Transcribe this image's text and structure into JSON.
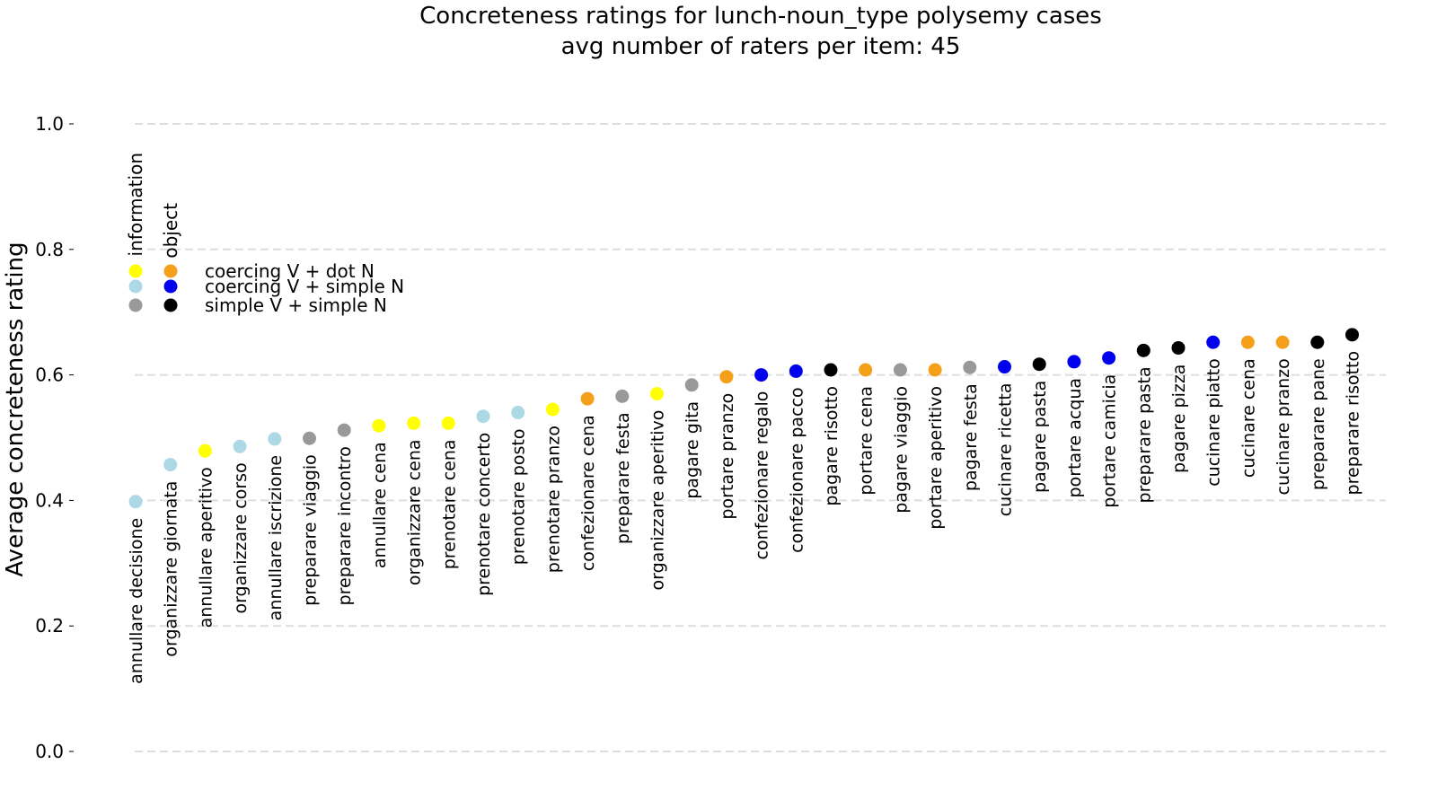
{
  "chart_data": {
    "type": "scatter",
    "title": "Concreteness ratings for lunch-noun_type polysemy cases",
    "subtitle": "avg number of raters per item: 45",
    "ylabel": "Average concreteness rating",
    "xlabel": "",
    "ylim": [
      0,
      1.0
    ],
    "yticks": [
      "0.0",
      "0.2",
      "0.4",
      "0.6",
      "0.8",
      "1.0"
    ],
    "grid": "horizontal-dashed",
    "legend": {
      "placement": "top-left",
      "column_headers": [
        "information",
        "object"
      ],
      "rows": [
        {
          "label": "coercing V + dot N",
          "colors": [
            "#ffff00",
            "#f5a01a"
          ]
        },
        {
          "label": "coercing V + simple N",
          "colors": [
            "#add8e6",
            "#0000ee"
          ]
        },
        {
          "label": "simple V + simple N",
          "colors": [
            "#999999",
            "#000000"
          ]
        }
      ]
    },
    "points": [
      {
        "label": "annullare decisione",
        "y": 0.398,
        "color": "#add8e6"
      },
      {
        "label": "organizzare giornata",
        "y": 0.457,
        "color": "#add8e6"
      },
      {
        "label": "annullare aperitivo",
        "y": 0.479,
        "color": "#ffff00"
      },
      {
        "label": "organizzare corso",
        "y": 0.486,
        "color": "#add8e6"
      },
      {
        "label": "annullare iscrizione",
        "y": 0.498,
        "color": "#add8e6"
      },
      {
        "label": "preparare viaggio",
        "y": 0.499,
        "color": "#999999"
      },
      {
        "label": "preparare incontro",
        "y": 0.512,
        "color": "#999999"
      },
      {
        "label": "annullare cena",
        "y": 0.519,
        "color": "#ffff00"
      },
      {
        "label": "organizzare cena",
        "y": 0.523,
        "color": "#ffff00"
      },
      {
        "label": "prenotare cena",
        "y": 0.523,
        "color": "#ffff00"
      },
      {
        "label": "prenotare concerto",
        "y": 0.534,
        "color": "#add8e6"
      },
      {
        "label": "prenotare posto",
        "y": 0.54,
        "color": "#add8e6"
      },
      {
        "label": "prenotare pranzo",
        "y": 0.545,
        "color": "#ffff00"
      },
      {
        "label": "confezionare cena",
        "y": 0.562,
        "color": "#f5a01a"
      },
      {
        "label": "preparare festa",
        "y": 0.566,
        "color": "#999999"
      },
      {
        "label": "organizzare aperitivo",
        "y": 0.57,
        "color": "#ffff00"
      },
      {
        "label": "pagare gita",
        "y": 0.584,
        "color": "#999999"
      },
      {
        "label": "portare pranzo",
        "y": 0.597,
        "color": "#f5a01a"
      },
      {
        "label": "confezionare regalo",
        "y": 0.6,
        "color": "#0000ee"
      },
      {
        "label": "confezionare pacco",
        "y": 0.606,
        "color": "#0000ee"
      },
      {
        "label": "pagare risotto",
        "y": 0.608,
        "color": "#000000"
      },
      {
        "label": "portare cena",
        "y": 0.608,
        "color": "#f5a01a"
      },
      {
        "label": "pagare viaggio",
        "y": 0.608,
        "color": "#999999"
      },
      {
        "label": "portare aperitivo",
        "y": 0.608,
        "color": "#f5a01a"
      },
      {
        "label": "pagare festa",
        "y": 0.612,
        "color": "#999999"
      },
      {
        "label": "cucinare ricetta",
        "y": 0.613,
        "color": "#0000ee"
      },
      {
        "label": "pagare pasta",
        "y": 0.617,
        "color": "#000000"
      },
      {
        "label": "portare acqua",
        "y": 0.621,
        "color": "#0000ee"
      },
      {
        "label": "portare camicia",
        "y": 0.627,
        "color": "#0000ee"
      },
      {
        "label": "preparare pasta",
        "y": 0.639,
        "color": "#000000"
      },
      {
        "label": "pagare pizza",
        "y": 0.643,
        "color": "#000000"
      },
      {
        "label": "cucinare piatto",
        "y": 0.652,
        "color": "#0000ee"
      },
      {
        "label": "cucinare cena",
        "y": 0.652,
        "color": "#f5a01a"
      },
      {
        "label": "cucinare pranzo",
        "y": 0.652,
        "color": "#f5a01a"
      },
      {
        "label": "preparare pane",
        "y": 0.652,
        "color": "#000000"
      },
      {
        "label": "preparare risotto",
        "y": 0.664,
        "color": "#000000"
      }
    ]
  }
}
